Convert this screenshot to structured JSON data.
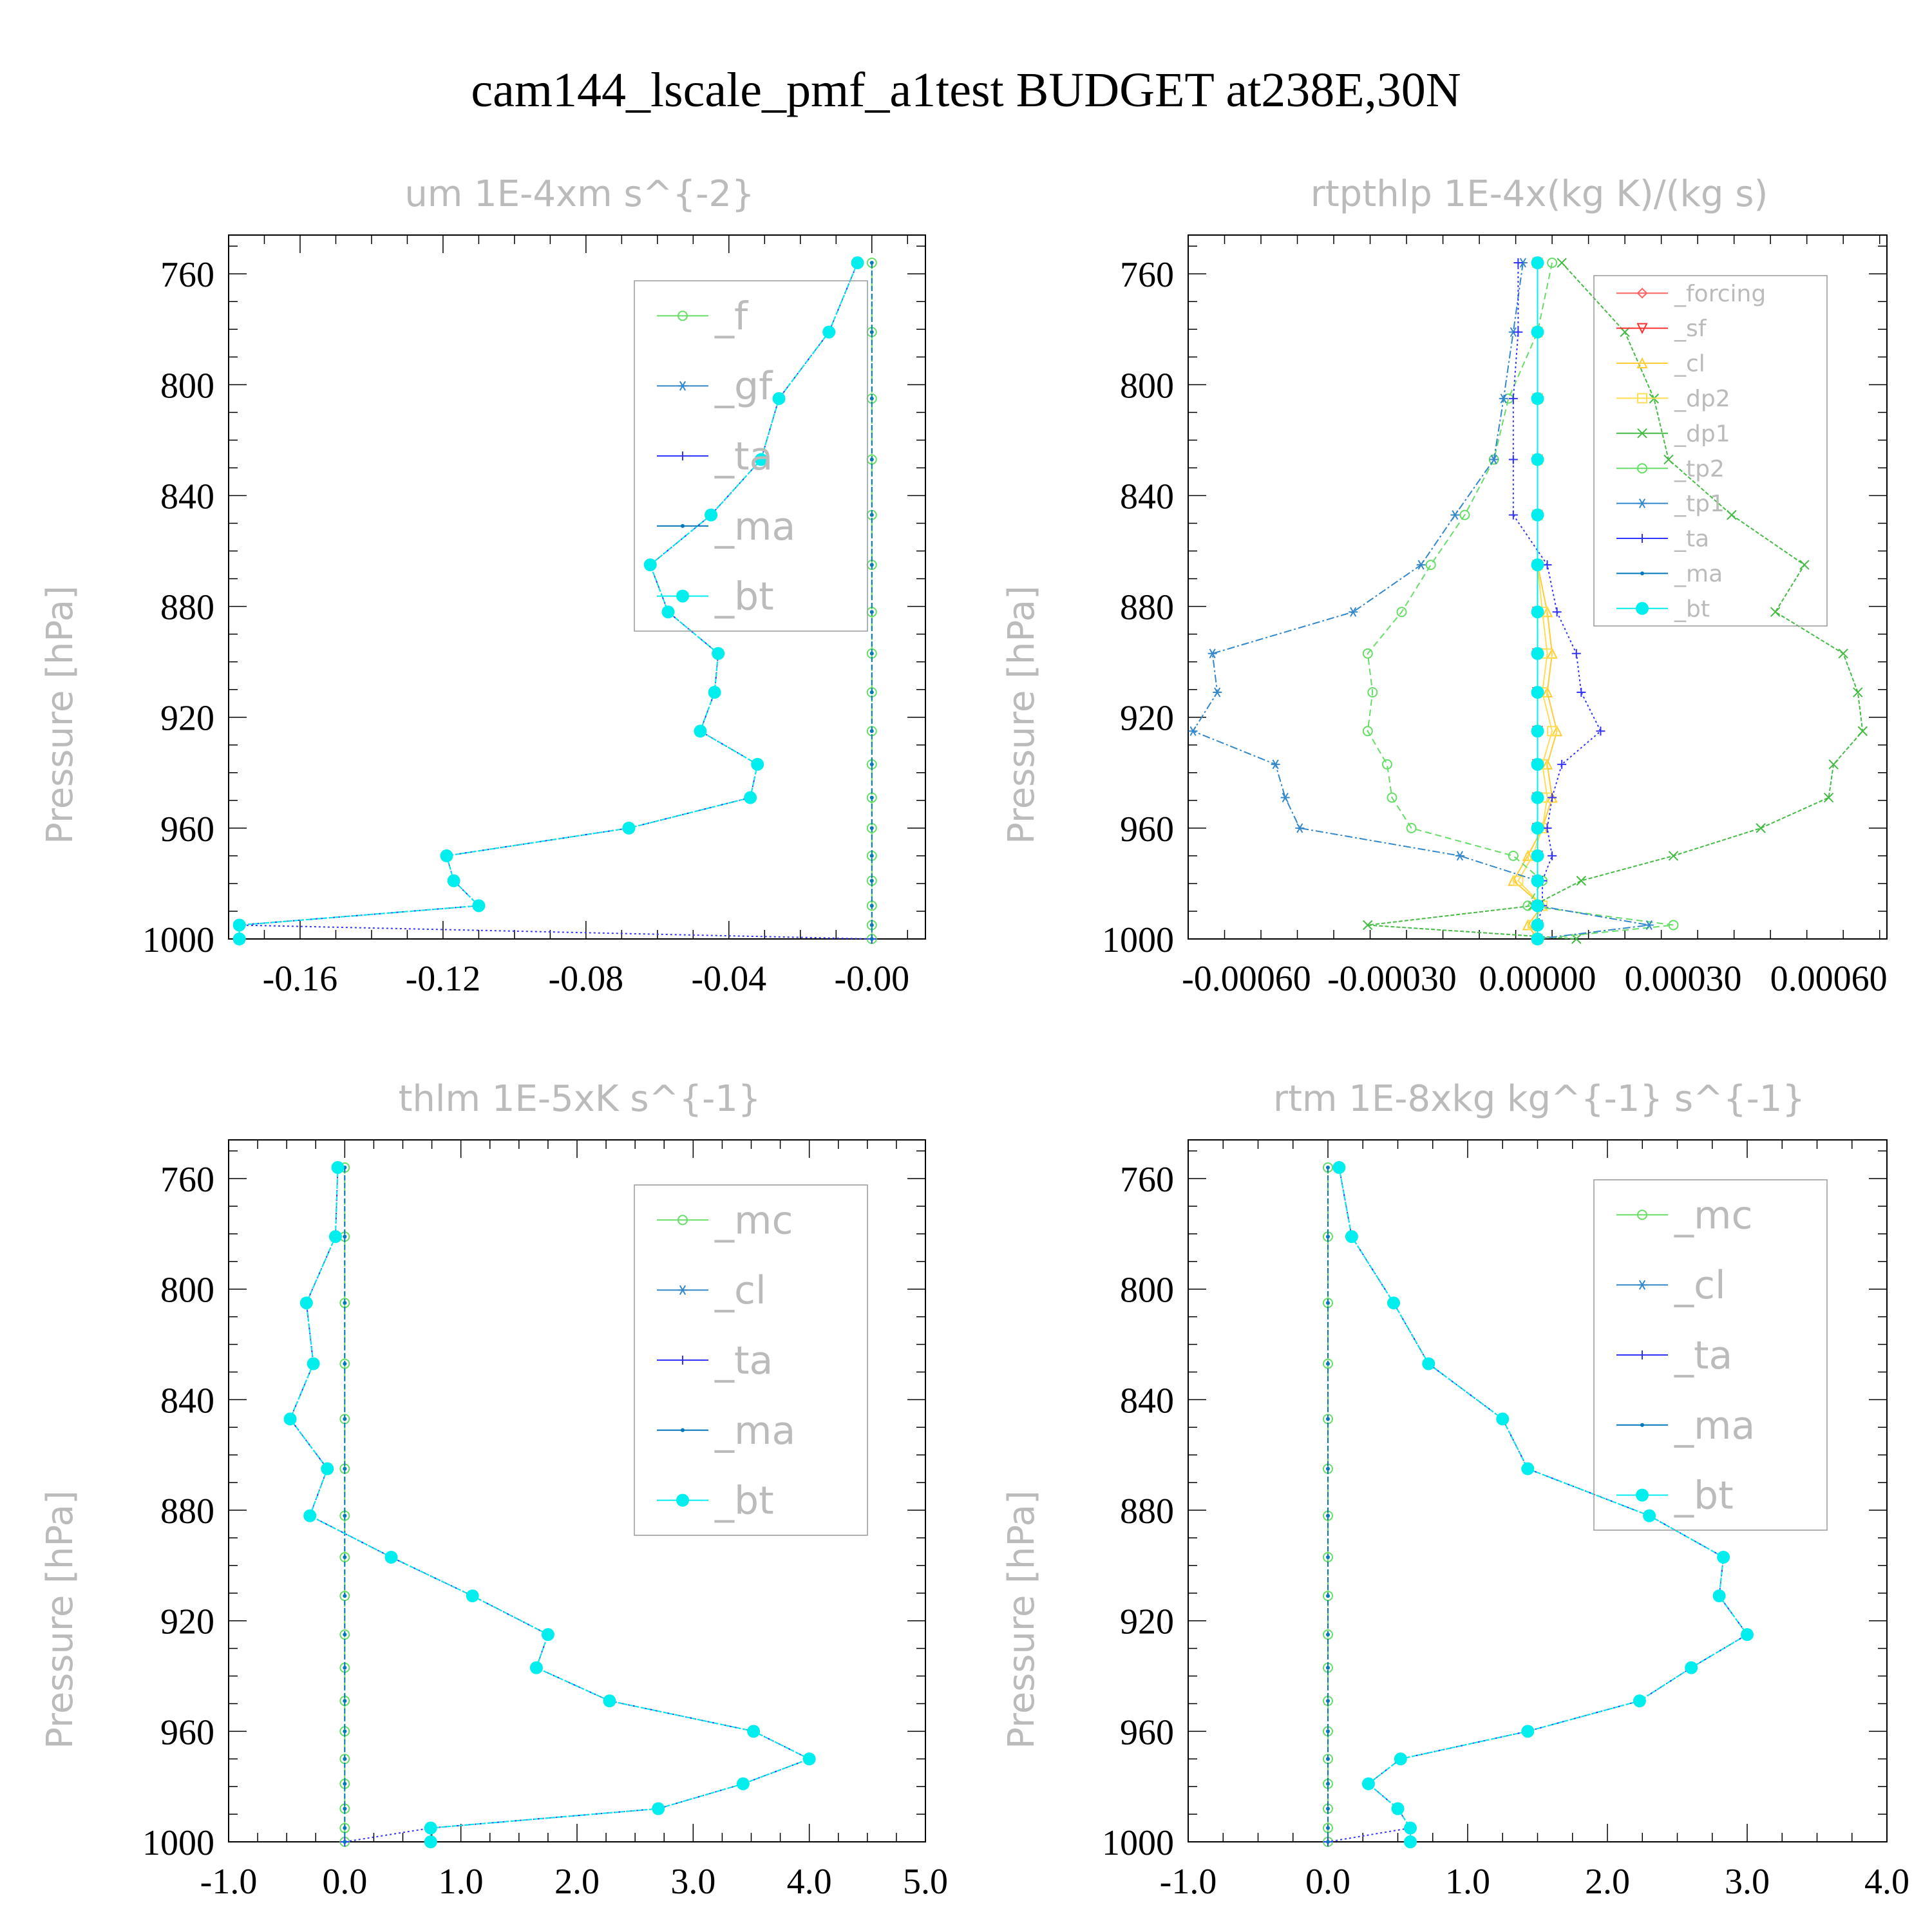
{
  "title": "cam144_lscale_pmf_a1test  BUDGET at238E,30N",
  "colors": {
    "f": "#66dd66",
    "mc": "#66dd66",
    "forcing": "#ff6060",
    "sf": "#ff3030",
    "cl": "#ffcc33",
    "dp2": "#ffdd55",
    "dp1": "#44bb44",
    "tp2": "#66dd66",
    "tp1": "#3388cc",
    "gf": "#3388cc",
    "cl4": "#3388cc",
    "ta": "#3333ff",
    "ma": "#0077bb",
    "bt": "#00eeee",
    "title_gray": "#bbbbbb"
  },
  "chart_data": [
    {
      "type": "line",
      "title": "um   1E-4xm s^{-2}",
      "ylabel": "Pressure [hPa]",
      "xlim": [
        -0.18,
        0.015
      ],
      "ylim": [
        1000,
        746
      ],
      "xticks": [
        -0.16,
        -0.12,
        -0.08,
        -0.04,
        0.0
      ],
      "xtick_labels": [
        "-0.16",
        "-0.12",
        "-0.08",
        "-0.04",
        "-0.00"
      ],
      "yticks": [
        760,
        800,
        840,
        880,
        920,
        960,
        1000
      ],
      "legend": [
        "_f",
        "_gf",
        "_ta",
        "_ma",
        "_bt"
      ],
      "legend_font": 60,
      "levels": [
        756,
        781,
        805,
        827,
        847,
        865,
        882,
        897,
        911,
        925,
        937,
        949,
        960,
        970,
        979,
        988,
        995,
        1000
      ],
      "series": [
        {
          "name": "_f",
          "key": "f",
          "marker": "circle",
          "dash": "10,6",
          "values": [
            0,
            0,
            0,
            0,
            0,
            0,
            0,
            0,
            0,
            0,
            0,
            0,
            0,
            0,
            0,
            0,
            0,
            0
          ]
        },
        {
          "name": "_gf",
          "key": "gf",
          "marker": "asterisk",
          "dash": "3,3",
          "values": [
            -0.004,
            -0.012,
            -0.026,
            -0.031,
            -0.045,
            -0.062,
            -0.057,
            -0.043,
            -0.044,
            -0.048,
            -0.032,
            -0.034,
            -0.068,
            -0.119,
            -0.117,
            -0.11,
            -0.177,
            -0.177
          ]
        },
        {
          "name": "_ta",
          "key": "ta",
          "marker": "plus",
          "dash": "3,4",
          "values": [
            -0.004,
            -0.012,
            -0.026,
            -0.031,
            -0.045,
            -0.062,
            -0.057,
            -0.043,
            -0.044,
            -0.048,
            -0.032,
            -0.034,
            -0.068,
            -0.119,
            -0.117,
            -0.11,
            -0.177,
            0.0
          ]
        },
        {
          "name": "_ma",
          "key": "ma",
          "marker": "dot",
          "dash": "8,4",
          "values": [
            0,
            0,
            0,
            0,
            0,
            0,
            0,
            0,
            0,
            0,
            0,
            0,
            0,
            0,
            0,
            0,
            0,
            0
          ]
        },
        {
          "name": "_bt",
          "key": "bt",
          "marker": "bigdot",
          "dash": "6,3",
          "values": [
            -0.004,
            -0.012,
            -0.026,
            -0.031,
            -0.045,
            -0.062,
            -0.057,
            -0.043,
            -0.044,
            -0.048,
            -0.032,
            -0.034,
            -0.068,
            -0.119,
            -0.117,
            -0.11,
            -0.177,
            -0.177
          ]
        }
      ]
    },
    {
      "type": "line",
      "title": "rtpthlp   1E-4x(kg K)/(kg s)",
      "ylabel": "Pressure [hPa]",
      "xlim": [
        -0.00072,
        0.00072
      ],
      "ylim": [
        1000,
        746
      ],
      "xticks": [
        -0.0006,
        -0.0003,
        0.0,
        0.0003,
        0.0006
      ],
      "xtick_labels": [
        "-0.00060",
        "-0.00030",
        "0.00000",
        "0.00030",
        "0.00060"
      ],
      "yticks": [
        760,
        800,
        840,
        880,
        920,
        960,
        1000
      ],
      "legend": [
        "_forcing",
        "_sf",
        "_cl",
        "_dp2",
        "_dp1",
        "_tp2",
        "_tp1",
        "_ta",
        "_ma",
        "_bt"
      ],
      "legend_font": 36,
      "levels": [
        756,
        781,
        805,
        827,
        847,
        865,
        882,
        897,
        911,
        925,
        937,
        949,
        960,
        970,
        979,
        988,
        995,
        1000
      ],
      "series": [
        {
          "name": "_forcing",
          "key": "forcing",
          "marker": "diamond",
          "dash": "",
          "values": [
            0,
            0,
            0,
            0,
            0,
            0,
            0,
            0,
            0,
            0,
            0,
            0,
            0,
            0,
            0,
            0,
            0,
            0
          ]
        },
        {
          "name": "_sf",
          "key": "sf",
          "marker": "tridown",
          "dash": "6,3",
          "values": [
            0,
            0,
            0,
            0,
            0,
            0,
            0,
            0,
            0,
            0,
            0,
            0,
            0,
            0,
            0,
            0,
            0,
            0
          ]
        },
        {
          "name": "_cl",
          "key": "cl",
          "marker": "triup",
          "dash": "",
          "values": [
            0,
            0,
            0,
            0,
            0,
            0,
            2e-05,
            3e-05,
            2e-05,
            4e-05,
            2e-05,
            3e-05,
            1e-05,
            -2e-05,
            -5e-05,
            1e-05,
            -2e-05,
            0
          ]
        },
        {
          "name": "_dp2",
          "key": "dp2",
          "marker": "square",
          "dash": "",
          "values": [
            0,
            0,
            0,
            0,
            0,
            0,
            1e-05,
            2e-05,
            1e-05,
            3e-05,
            1e-05,
            2e-05,
            1e-05,
            -1e-05,
            -4e-05,
            1e-05,
            -1e-05,
            0
          ]
        },
        {
          "name": "_dp1",
          "key": "dp1",
          "marker": "cross",
          "dash": "6,3",
          "values": [
            5e-05,
            0.00018,
            0.00024,
            0.00027,
            0.0004,
            0.00055,
            0.00049,
            0.00063,
            0.00066,
            0.00067,
            0.00061,
            0.0006,
            0.00046,
            0.00028,
            9e-05,
            -1e-05,
            -0.00035,
            8e-05
          ]
        },
        {
          "name": "_tp2",
          "key": "tp2",
          "marker": "circle",
          "dash": "10,6",
          "values": [
            3e-05,
            0.0,
            -6e-05,
            -9e-05,
            -0.00015,
            -0.00022,
            -0.00028,
            -0.00035,
            -0.00034,
            -0.00035,
            -0.00031,
            -0.0003,
            -0.00026,
            -5e-05,
            1e-05,
            -2e-05,
            0.00028,
            0
          ]
        },
        {
          "name": "_tp1",
          "key": "tp1",
          "marker": "asterisk",
          "dash": "12,4,3,4",
          "values": [
            -3e-05,
            -5e-05,
            -7e-05,
            -9e-05,
            -0.00017,
            -0.00024,
            -0.00038,
            -0.00067,
            -0.00066,
            -0.00071,
            -0.00054,
            -0.00052,
            -0.00049,
            -0.00016,
            0.0,
            0.0,
            0.00023,
            0
          ]
        },
        {
          "name": "_ta",
          "key": "ta",
          "marker": "plus",
          "dash": "3,4",
          "values": [
            -4e-05,
            -4e-05,
            -5e-05,
            -5e-05,
            -5e-05,
            2e-05,
            4e-05,
            8e-05,
            9e-05,
            0.00013,
            5e-05,
            3e-05,
            2e-05,
            3e-05,
            1e-05,
            1e-05,
            0.0,
            0
          ]
        },
        {
          "name": "_ma",
          "key": "ma",
          "marker": "dot",
          "dash": "12,4,3,4",
          "values": [
            0,
            0,
            0,
            0,
            0,
            0,
            0,
            0,
            0,
            0,
            0,
            0,
            0,
            0,
            0,
            0,
            0,
            0
          ]
        },
        {
          "name": "_bt",
          "key": "bt",
          "marker": "bigdot",
          "dash": "",
          "values": [
            0,
            0,
            0,
            0,
            0,
            0,
            0,
            0,
            0,
            0,
            0,
            0,
            0,
            0,
            0,
            0,
            0,
            0
          ]
        }
      ]
    },
    {
      "type": "line",
      "title": "thlm   1E-5xK s^{-1}",
      "ylabel": "Pressure [hPa]",
      "xlim": [
        -1.0,
        5.0
      ],
      "ylim": [
        1000,
        746
      ],
      "xticks": [
        -1.0,
        0.0,
        1.0,
        2.0,
        3.0,
        4.0,
        5.0
      ],
      "xtick_labels": [
        "-1.0",
        "0.0",
        "1.0",
        "2.0",
        "3.0",
        "4.0",
        "5.0"
      ],
      "yticks": [
        760,
        800,
        840,
        880,
        920,
        960,
        1000
      ],
      "legend": [
        "_mc",
        "_cl",
        "_ta",
        "_ma",
        "_bt"
      ],
      "legend_font": 60,
      "levels": [
        756,
        781,
        805,
        827,
        847,
        865,
        882,
        897,
        911,
        925,
        937,
        949,
        960,
        970,
        979,
        988,
        995,
        1000
      ],
      "series": [
        {
          "name": "_mc",
          "key": "mc",
          "marker": "circle",
          "dash": "10,6",
          "values": [
            0,
            0,
            0,
            0,
            0,
            0,
            0,
            0,
            0,
            0,
            0,
            0,
            0,
            0,
            0,
            0,
            0,
            0
          ]
        },
        {
          "name": "_cl",
          "key": "cl4",
          "marker": "asterisk",
          "dash": "3,3",
          "values": [
            -0.06,
            -0.08,
            -0.33,
            -0.27,
            -0.47,
            -0.15,
            -0.3,
            0.4,
            1.1,
            1.75,
            1.65,
            2.28,
            3.52,
            4.0,
            3.43,
            2.7,
            0.74,
            0.74
          ]
        },
        {
          "name": "_ta",
          "key": "ta",
          "marker": "plus",
          "dash": "3,4",
          "values": [
            -0.06,
            -0.08,
            -0.33,
            -0.27,
            -0.47,
            -0.15,
            -0.3,
            0.4,
            1.1,
            1.75,
            1.65,
            2.28,
            3.52,
            4.0,
            3.43,
            2.7,
            0.74,
            0.0
          ]
        },
        {
          "name": "_ma",
          "key": "ma",
          "marker": "dot",
          "dash": "8,4",
          "values": [
            0,
            0,
            0,
            0,
            0,
            0,
            0,
            0,
            0,
            0,
            0,
            0,
            0,
            0,
            0,
            0,
            0,
            0
          ]
        },
        {
          "name": "_bt",
          "key": "bt",
          "marker": "bigdot",
          "dash": "6,3",
          "values": [
            -0.06,
            -0.08,
            -0.33,
            -0.27,
            -0.47,
            -0.15,
            -0.3,
            0.4,
            1.1,
            1.75,
            1.65,
            2.28,
            3.52,
            4.0,
            3.43,
            2.7,
            0.74,
            0.74
          ]
        }
      ]
    },
    {
      "type": "line",
      "title": "rtm   1E-8xkg kg^{-1} s^{-1}",
      "ylabel": "Pressure [hPa]",
      "xlim": [
        -1.0,
        4.0
      ],
      "ylim": [
        1000,
        746
      ],
      "xticks": [
        -1.0,
        0.0,
        1.0,
        2.0,
        3.0,
        4.0
      ],
      "xtick_labels": [
        "-1.0",
        "0.0",
        "1.0",
        "2.0",
        "3.0",
        "4.0"
      ],
      "yticks": [
        760,
        800,
        840,
        880,
        920,
        960,
        1000
      ],
      "legend": [
        "_mc",
        "_cl",
        "_ta",
        "_ma",
        "_bt"
      ],
      "legend_font": 60,
      "levels": [
        756,
        781,
        805,
        827,
        847,
        865,
        882,
        897,
        911,
        925,
        937,
        949,
        960,
        970,
        979,
        988,
        995,
        1000
      ],
      "series": [
        {
          "name": "_mc",
          "key": "mc",
          "marker": "circle",
          "dash": "10,6",
          "values": [
            0,
            0,
            0,
            0,
            0,
            0,
            0,
            0,
            0,
            0,
            0,
            0,
            0,
            0,
            0,
            0,
            0,
            0
          ]
        },
        {
          "name": "_cl",
          "key": "cl4",
          "marker": "asterisk",
          "dash": "3,3",
          "values": [
            0.08,
            0.17,
            0.47,
            0.72,
            1.25,
            1.43,
            2.3,
            2.83,
            2.8,
            3.0,
            2.6,
            2.23,
            1.43,
            0.52,
            0.29,
            0.5,
            0.59,
            0.59
          ]
        },
        {
          "name": "_ta",
          "key": "ta",
          "marker": "plus",
          "dash": "3,4",
          "values": [
            0.08,
            0.17,
            0.47,
            0.72,
            1.25,
            1.43,
            2.3,
            2.83,
            2.8,
            3.0,
            2.6,
            2.23,
            1.43,
            0.52,
            0.29,
            0.5,
            0.59,
            0.0
          ]
        },
        {
          "name": "_ma",
          "key": "ma",
          "marker": "dot",
          "dash": "8,4",
          "values": [
            0,
            0,
            0,
            0,
            0,
            0,
            0,
            0,
            0,
            0,
            0,
            0,
            0,
            0,
            0,
            0,
            0,
            0
          ]
        },
        {
          "name": "_bt",
          "key": "bt",
          "marker": "bigdot",
          "dash": "6,3",
          "values": [
            0.08,
            0.17,
            0.47,
            0.72,
            1.25,
            1.43,
            2.3,
            2.83,
            2.8,
            3.0,
            2.6,
            2.23,
            1.43,
            0.52,
            0.29,
            0.5,
            0.59,
            0.59
          ]
        }
      ]
    }
  ]
}
